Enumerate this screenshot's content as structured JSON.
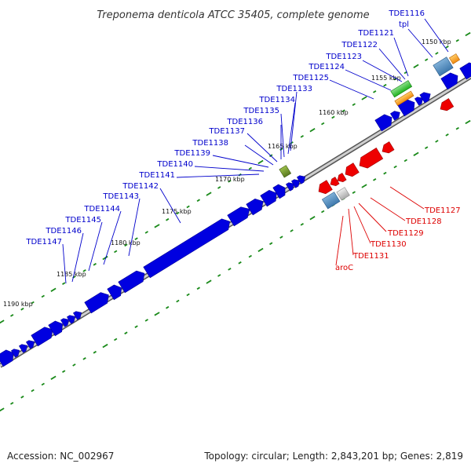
{
  "title": "Treponema denticola ATCC 35405, complete genome",
  "footer": {
    "accession": "Accession: NC_002967",
    "summary": "Topology: circular; Length: 2,843,201 bp; Genes: 2,819"
  },
  "colors": {
    "forward": "#0000e0",
    "reverse": "#ee0000",
    "backbone": "#999999",
    "ticks": "#1a8a1a"
  },
  "scale_labels": [
    "1150 kbp",
    "1155 kbp",
    "1160 kbp",
    "1165 kbp",
    "1170 kbp",
    "1175 kbp",
    "1180 kbp",
    "1185 kbp",
    "1190 kbp"
  ],
  "forward_labels": [
    "TDE1116",
    "tpl",
    "TDE1121",
    "TDE1122",
    "TDE1123",
    "TDE1124",
    "TDE1125",
    "TDE1133",
    "TDE1134",
    "TDE1135",
    "TDE1136",
    "TDE1137",
    "TDE1138",
    "TDE1139",
    "TDE1140",
    "TDE1141",
    "TDE1142",
    "TDE1143",
    "TDE1144",
    "TDE1145",
    "TDE1146",
    "TDE1147"
  ],
  "reverse_labels": [
    "TDE1127",
    "TDE1128",
    "TDE1129",
    "TDE1130",
    "TDE1131",
    "aroC"
  ]
}
